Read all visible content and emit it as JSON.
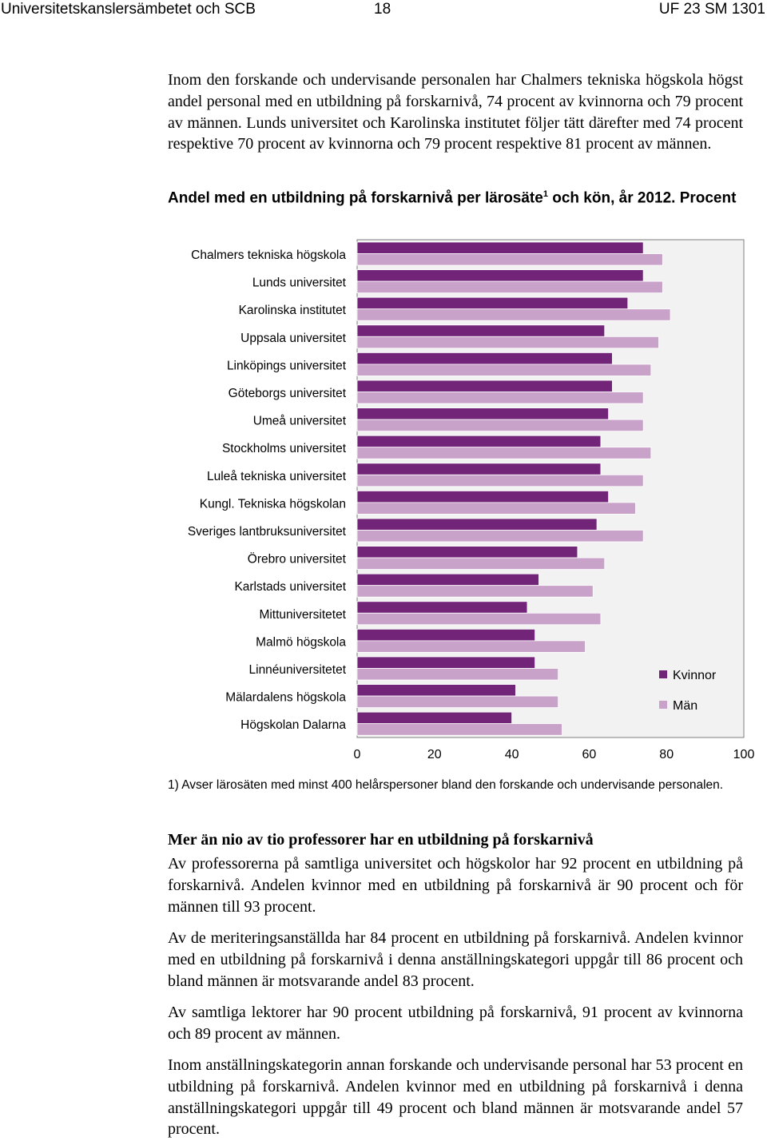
{
  "header": {
    "left": "Universitetskanslersämbetet och SCB",
    "page_number": "18",
    "right": "UF 23 SM 1301"
  },
  "intro_paragraph": "Inom den forskande och undervisande personalen har Chalmers tekniska högskola högst andel personal med en utbildning på forskarnivå, 74 procent av kvinnorna och 79 procent av männen. Lunds universitet och Karolinska institutet följer tätt därefter med 74 procent respektive 70 procent av kvinnorna och 79 procent respektive 81 procent av männen.",
  "chart_title": {
    "main": "Andel med en utbildning på forskarnivå per lärosäte",
    "sup": "1",
    "rest": " och kön, år 2012. Procent"
  },
  "chart_data": {
    "type": "bar",
    "orientation": "horizontal",
    "categories": [
      "Chalmers tekniska högskola",
      "Lunds universitet",
      "Karolinska institutet",
      "Uppsala universitet",
      "Linköpings universitet",
      "Göteborgs universitet",
      "Umeå universitet",
      "Stockholms universitet",
      "Luleå tekniska universitet",
      "Kungl. Tekniska högskolan",
      "Sveriges lantbruksuniversitet",
      "Örebro universitet",
      "Karlstads universitet",
      "Mittuniversitetet",
      "Malmö högskola",
      "Linnéuniversitetet",
      "Mälardalens högskola",
      "Högskolan Dalarna"
    ],
    "series": [
      {
        "name": "Kvinnor",
        "color": "#722578",
        "values": [
          74,
          74,
          70,
          64,
          66,
          66,
          65,
          63,
          63,
          65,
          62,
          57,
          47,
          44,
          46,
          46,
          41,
          40
        ]
      },
      {
        "name": "Män",
        "color": "#c8a2c8",
        "values": [
          79,
          79,
          81,
          78,
          76,
          74,
          74,
          76,
          74,
          72,
          74,
          64,
          61,
          63,
          59,
          52,
          52,
          53
        ]
      }
    ],
    "xlim": [
      0,
      100
    ],
    "xticks": [
      "0",
      "20",
      "40",
      "60",
      "80",
      "100"
    ],
    "legend_position": "right",
    "plot_background": "#f2f2f2"
  },
  "footnote": "1) Avser lärosäten med minst 400 helårspersoner bland den forskande och undervisande personalen.",
  "section_heading": "Mer än nio av tio professorer har en utbildning på forskarnivå",
  "paragraphs": [
    "Av professorerna på samtliga universitet och högskolor har 92 procent en utbildning på forskarnivå. Andelen kvinnor med en utbildning på forskarnivå är 90 procent och för männen till 93 procent.",
    "Av de meriteringsanställda har 84 procent en utbildning på forskarnivå. Andelen kvinnor med en utbildning på forskarnivå i denna anställningskategori uppgår till 86 procent och bland männen är motsvarande andel 83 procent.",
    "Av samtliga lektorer har 90 procent utbildning på forskarnivå, 91 procent av kvinnorna och 89 procent av männen.",
    "Inom anställningskategorin annan forskande och undervisande personal har 53 procent en utbildning på forskarnivå. Andelen kvinnor med en utbildning på forskarnivå i denna anställningskategori uppgår till 49 procent och bland männen är motsvarande andel 57 procent."
  ]
}
